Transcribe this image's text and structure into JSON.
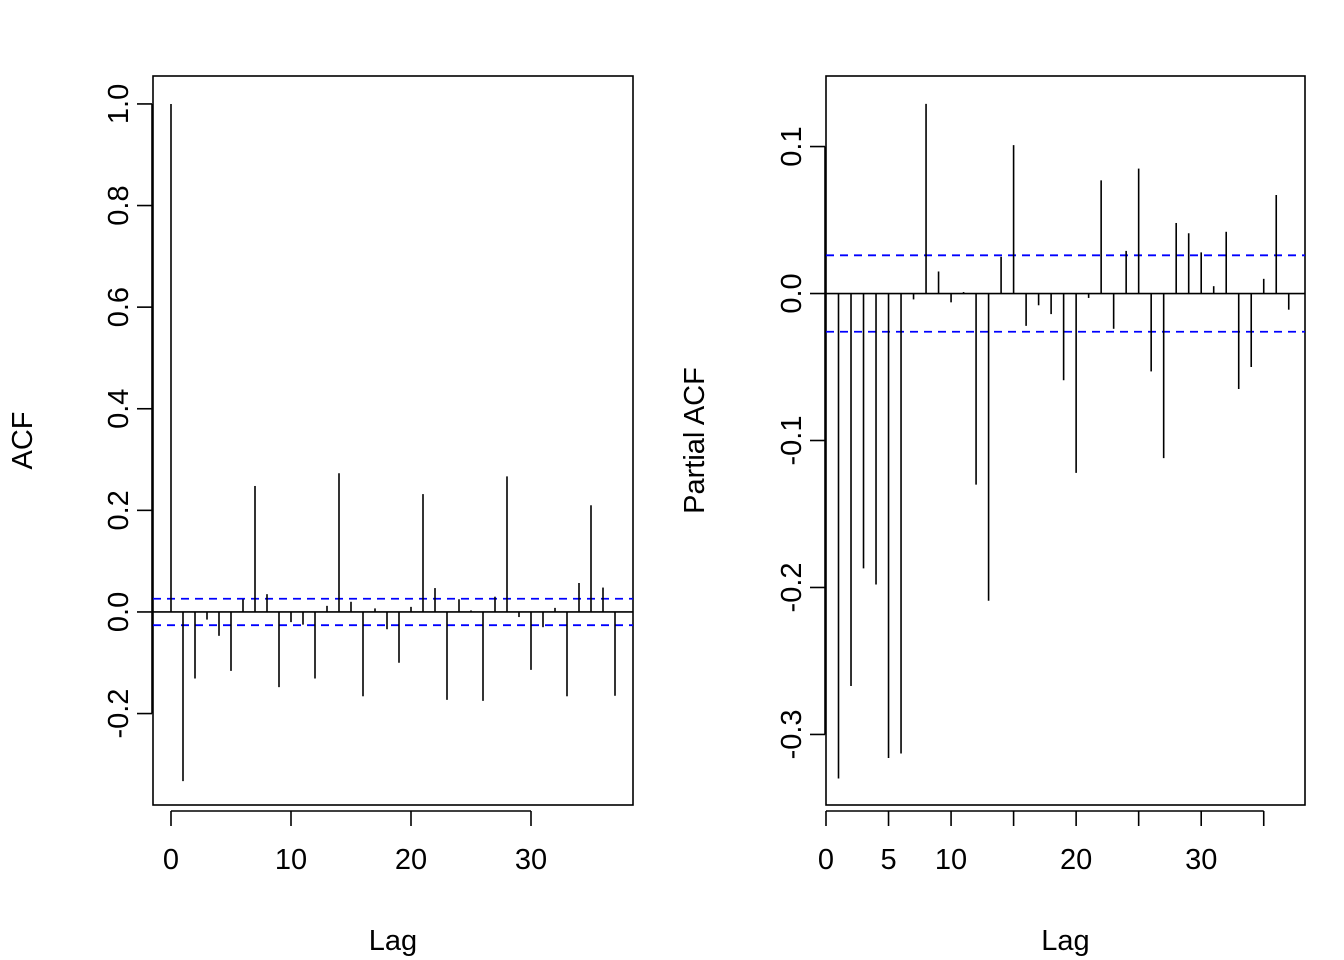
{
  "chart_data": [
    {
      "type": "bar",
      "subtype": "acf-stem",
      "xlabel": "Lag",
      "ylabel": "ACF",
      "xlim": [
        -1.5,
        38.5
      ],
      "ylim": [
        -0.38,
        1.055
      ],
      "xticks": [
        0,
        10,
        20,
        30
      ],
      "xtick_labels": [
        "0",
        "10",
        "20",
        "30"
      ],
      "yticks": [
        -0.2,
        0.0,
        0.2,
        0.4,
        0.6,
        0.8,
        1.0
      ],
      "ytick_labels": [
        "-0.2",
        "0.0",
        "0.2",
        "0.4",
        "0.6",
        "0.8",
        "1.0"
      ],
      "confidence_band": 0.026,
      "band_color": "#0000ff",
      "stem_color": "#000000",
      "x": [
        0,
        1,
        2,
        3,
        4,
        5,
        6,
        7,
        8,
        9,
        10,
        11,
        12,
        13,
        14,
        15,
        16,
        17,
        18,
        19,
        20,
        21,
        22,
        23,
        24,
        25,
        26,
        27,
        28,
        29,
        30,
        31,
        32,
        33,
        34,
        35,
        36,
        37
      ],
      "values": [
        1.0,
        -0.333,
        -0.131,
        -0.015,
        -0.047,
        -0.116,
        0.025,
        0.248,
        0.035,
        -0.148,
        -0.02,
        -0.025,
        -0.131,
        0.012,
        0.273,
        0.02,
        -0.166,
        0.007,
        -0.034,
        -0.1,
        0.01,
        0.232,
        0.047,
        -0.173,
        0.025,
        0.003,
        -0.175,
        0.03,
        0.267,
        -0.01,
        -0.114,
        -0.03,
        0.008,
        -0.166,
        0.057,
        0.21,
        0.048,
        -0.165
      ]
    },
    {
      "type": "bar",
      "subtype": "pacf-stem",
      "xlabel": "Lag",
      "ylabel": "Partial ACF",
      "xlim": [
        0,
        38.3
      ],
      "ylim": [
        -0.348,
        0.148
      ],
      "xticks": [
        0,
        5,
        10,
        15,
        20,
        25,
        30,
        35
      ],
      "xtick_labels": [
        "0",
        "5",
        "10",
        "",
        "20",
        "",
        "30",
        ""
      ],
      "yticks": [
        -0.3,
        -0.2,
        -0.1,
        0.0,
        0.1
      ],
      "ytick_labels": [
        "-0.3",
        "-0.2",
        "-0.1",
        "0.0",
        "0.1"
      ],
      "confidence_band": 0.026,
      "band_color": "#0000ff",
      "stem_color": "#000000",
      "x": [
        1,
        2,
        3,
        4,
        5,
        6,
        7,
        8,
        9,
        10,
        11,
        12,
        13,
        14,
        15,
        16,
        17,
        18,
        19,
        20,
        21,
        22,
        23,
        24,
        25,
        26,
        27,
        28,
        29,
        30,
        31,
        32,
        33,
        34,
        35,
        36,
        37
      ],
      "values": [
        -0.33,
        -0.267,
        -0.187,
        -0.198,
        -0.316,
        -0.313,
        -0.004,
        0.129,
        0.015,
        -0.006,
        0.001,
        -0.13,
        -0.209,
        0.025,
        0.101,
        -0.022,
        -0.008,
        -0.014,
        -0.059,
        -0.122,
        -0.003,
        0.077,
        -0.024,
        0.029,
        0.085,
        -0.053,
        -0.112,
        0.048,
        0.041,
        0.028,
        0.005,
        0.042,
        -0.065,
        -0.05,
        0.01,
        0.067,
        -0.011
      ]
    }
  ]
}
